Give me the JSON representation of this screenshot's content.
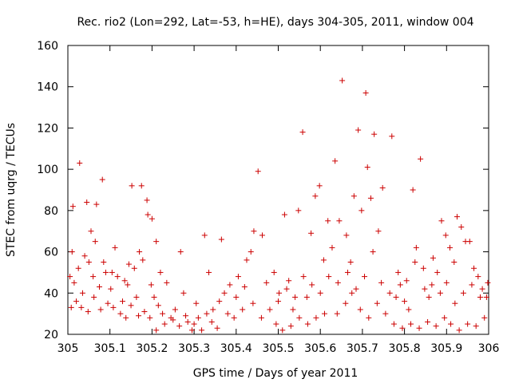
{
  "chart_data": {
    "type": "scatter",
    "title": "Rec. rio2 (Lon=292, Lat=-53, h=HE), days 304-305, 2011, window 004",
    "xlabel": "GPS time / Days of year 2011",
    "ylabel": "STEC from uqrg / TECUs",
    "xlim": [
      305,
      306
    ],
    "ylim": [
      20,
      160
    ],
    "xticks": [
      "305",
      "305.1",
      "305.2",
      "305.3",
      "305.4",
      "305.5",
      "305.6",
      "305.7",
      "305.8",
      "305.9",
      "306"
    ],
    "yticks": [
      "20",
      "40",
      "60",
      "80",
      "100",
      "120",
      "140",
      "160"
    ],
    "grid": false,
    "legend": "none",
    "marker": "plus",
    "color": "#cc0000",
    "series": [
      {
        "points": [
          [
            305.012,
            82
          ],
          [
            305.028,
            103
          ],
          [
            305.045,
            84
          ],
          [
            305.055,
            70
          ],
          [
            305.068,
            83
          ],
          [
            305.082,
            95
          ],
          [
            305.005,
            48
          ],
          [
            305.015,
            45
          ],
          [
            305.025,
            52
          ],
          [
            305.035,
            40
          ],
          [
            305.05,
            55
          ],
          [
            305.06,
            48
          ],
          [
            305.075,
            43
          ],
          [
            305.09,
            50
          ],
          [
            305.008,
            33
          ],
          [
            305.02,
            36
          ],
          [
            305.032,
            33
          ],
          [
            305.048,
            31
          ],
          [
            305.062,
            38
          ],
          [
            305.078,
            32
          ],
          [
            305.095,
            35
          ],
          [
            305.01,
            60
          ],
          [
            305.04,
            58
          ],
          [
            305.065,
            65
          ],
          [
            305.085,
            55
          ],
          [
            305.102,
            42
          ],
          [
            305.118,
            48
          ],
          [
            305.13,
            36
          ],
          [
            305.142,
            44
          ],
          [
            305.152,
            92
          ],
          [
            305.163,
            38
          ],
          [
            305.175,
            92
          ],
          [
            305.188,
            85
          ],
          [
            305.108,
            33
          ],
          [
            305.125,
            30
          ],
          [
            305.138,
            28
          ],
          [
            305.15,
            34
          ],
          [
            305.168,
            29
          ],
          [
            305.182,
            31
          ],
          [
            305.195,
            28
          ],
          [
            305.112,
            62
          ],
          [
            305.145,
            54
          ],
          [
            305.17,
            60
          ],
          [
            305.19,
            78
          ],
          [
            305.2,
            76
          ],
          [
            305.21,
            65
          ],
          [
            305.22,
            50
          ],
          [
            305.105,
            50
          ],
          [
            305.135,
            46
          ],
          [
            305.158,
            52
          ],
          [
            305.178,
            56
          ],
          [
            305.198,
            44
          ],
          [
            305.205,
            38
          ],
          [
            305.215,
            34
          ],
          [
            305.225,
            30
          ],
          [
            305.235,
            45
          ],
          [
            305.245,
            28
          ],
          [
            305.255,
            32
          ],
          [
            305.268,
            60
          ],
          [
            305.275,
            40
          ],
          [
            305.285,
            26
          ],
          [
            305.295,
            22
          ],
          [
            305.305,
            35
          ],
          [
            305.318,
            22
          ],
          [
            305.325,
            68
          ],
          [
            305.335,
            50
          ],
          [
            305.21,
            22
          ],
          [
            305.23,
            25
          ],
          [
            305.25,
            27
          ],
          [
            305.265,
            24
          ],
          [
            305.28,
            29
          ],
          [
            305.3,
            25
          ],
          [
            305.31,
            28
          ],
          [
            305.33,
            30
          ],
          [
            305.342,
            26
          ],
          [
            305.355,
            23
          ],
          [
            305.365,
            66
          ],
          [
            305.372,
            40
          ],
          [
            305.385,
            44
          ],
          [
            305.395,
            28
          ],
          [
            305.405,
            48
          ],
          [
            305.415,
            32
          ],
          [
            305.425,
            56
          ],
          [
            305.435,
            60
          ],
          [
            305.442,
            70
          ],
          [
            305.452,
            99
          ],
          [
            305.462,
            68
          ],
          [
            305.472,
            45
          ],
          [
            305.345,
            32
          ],
          [
            305.36,
            36
          ],
          [
            305.38,
            30
          ],
          [
            305.4,
            38
          ],
          [
            305.42,
            43
          ],
          [
            305.44,
            35
          ],
          [
            305.46,
            28
          ],
          [
            305.48,
            32
          ],
          [
            305.49,
            50
          ],
          [
            305.502,
            40
          ],
          [
            305.515,
            78
          ],
          [
            305.525,
            46
          ],
          [
            305.535,
            32
          ],
          [
            305.548,
            80
          ],
          [
            305.558,
            118
          ],
          [
            305.568,
            38
          ],
          [
            305.578,
            69
          ],
          [
            305.588,
            87
          ],
          [
            305.598,
            92
          ],
          [
            305.608,
            56
          ],
          [
            305.618,
            75
          ],
          [
            305.628,
            62
          ],
          [
            305.495,
            25
          ],
          [
            305.51,
            22
          ],
          [
            305.53,
            24
          ],
          [
            305.55,
            28
          ],
          [
            305.57,
            25
          ],
          [
            305.59,
            28
          ],
          [
            305.61,
            30
          ],
          [
            305.5,
            36
          ],
          [
            305.52,
            42
          ],
          [
            305.54,
            38
          ],
          [
            305.56,
            48
          ],
          [
            305.58,
            44
          ],
          [
            305.6,
            40
          ],
          [
            305.62,
            48
          ],
          [
            305.635,
            104
          ],
          [
            305.645,
            75
          ],
          [
            305.652,
            143
          ],
          [
            305.662,
            68
          ],
          [
            305.672,
            55
          ],
          [
            305.68,
            87
          ],
          [
            305.69,
            119
          ],
          [
            305.698,
            80
          ],
          [
            305.708,
            137
          ],
          [
            305.712,
            101
          ],
          [
            305.72,
            86
          ],
          [
            305.728,
            117
          ],
          [
            305.738,
            70
          ],
          [
            305.748,
            91
          ],
          [
            305.64,
            30
          ],
          [
            305.66,
            35
          ],
          [
            305.675,
            40
          ],
          [
            305.695,
            32
          ],
          [
            305.715,
            28
          ],
          [
            305.735,
            35
          ],
          [
            305.755,
            30
          ],
          [
            305.642,
            45
          ],
          [
            305.665,
            50
          ],
          [
            305.685,
            42
          ],
          [
            305.705,
            48
          ],
          [
            305.725,
            60
          ],
          [
            305.745,
            45
          ],
          [
            305.765,
            40
          ],
          [
            305.77,
            116
          ],
          [
            305.78,
            38
          ],
          [
            305.79,
            44
          ],
          [
            305.8,
            36
          ],
          [
            305.81,
            32
          ],
          [
            305.82,
            90
          ],
          [
            305.828,
            62
          ],
          [
            305.838,
            105
          ],
          [
            305.848,
            42
          ],
          [
            305.858,
            38
          ],
          [
            305.868,
            57
          ],
          [
            305.878,
            50
          ],
          [
            305.888,
            75
          ],
          [
            305.898,
            68
          ],
          [
            305.775,
            25
          ],
          [
            305.795,
            23
          ],
          [
            305.815,
            25
          ],
          [
            305.835,
            23
          ],
          [
            305.855,
            26
          ],
          [
            305.875,
            24
          ],
          [
            305.895,
            28
          ],
          [
            305.785,
            50
          ],
          [
            305.805,
            46
          ],
          [
            305.825,
            55
          ],
          [
            305.845,
            52
          ],
          [
            305.865,
            44
          ],
          [
            305.885,
            40
          ],
          [
            305.9,
            45
          ],
          [
            305.908,
            62
          ],
          [
            305.918,
            55
          ],
          [
            305.925,
            77
          ],
          [
            305.935,
            72
          ],
          [
            305.945,
            65
          ],
          [
            305.955,
            65
          ],
          [
            305.965,
            52
          ],
          [
            305.975,
            48
          ],
          [
            305.985,
            42
          ],
          [
            305.995,
            38
          ],
          [
            305.91,
            25
          ],
          [
            305.93,
            22
          ],
          [
            305.95,
            25
          ],
          [
            305.97,
            24
          ],
          [
            305.99,
            28
          ],
          [
            305.92,
            35
          ],
          [
            305.94,
            40
          ],
          [
            305.96,
            44
          ],
          [
            305.98,
            38
          ],
          [
            305.998,
            45
          ]
        ]
      }
    ]
  }
}
